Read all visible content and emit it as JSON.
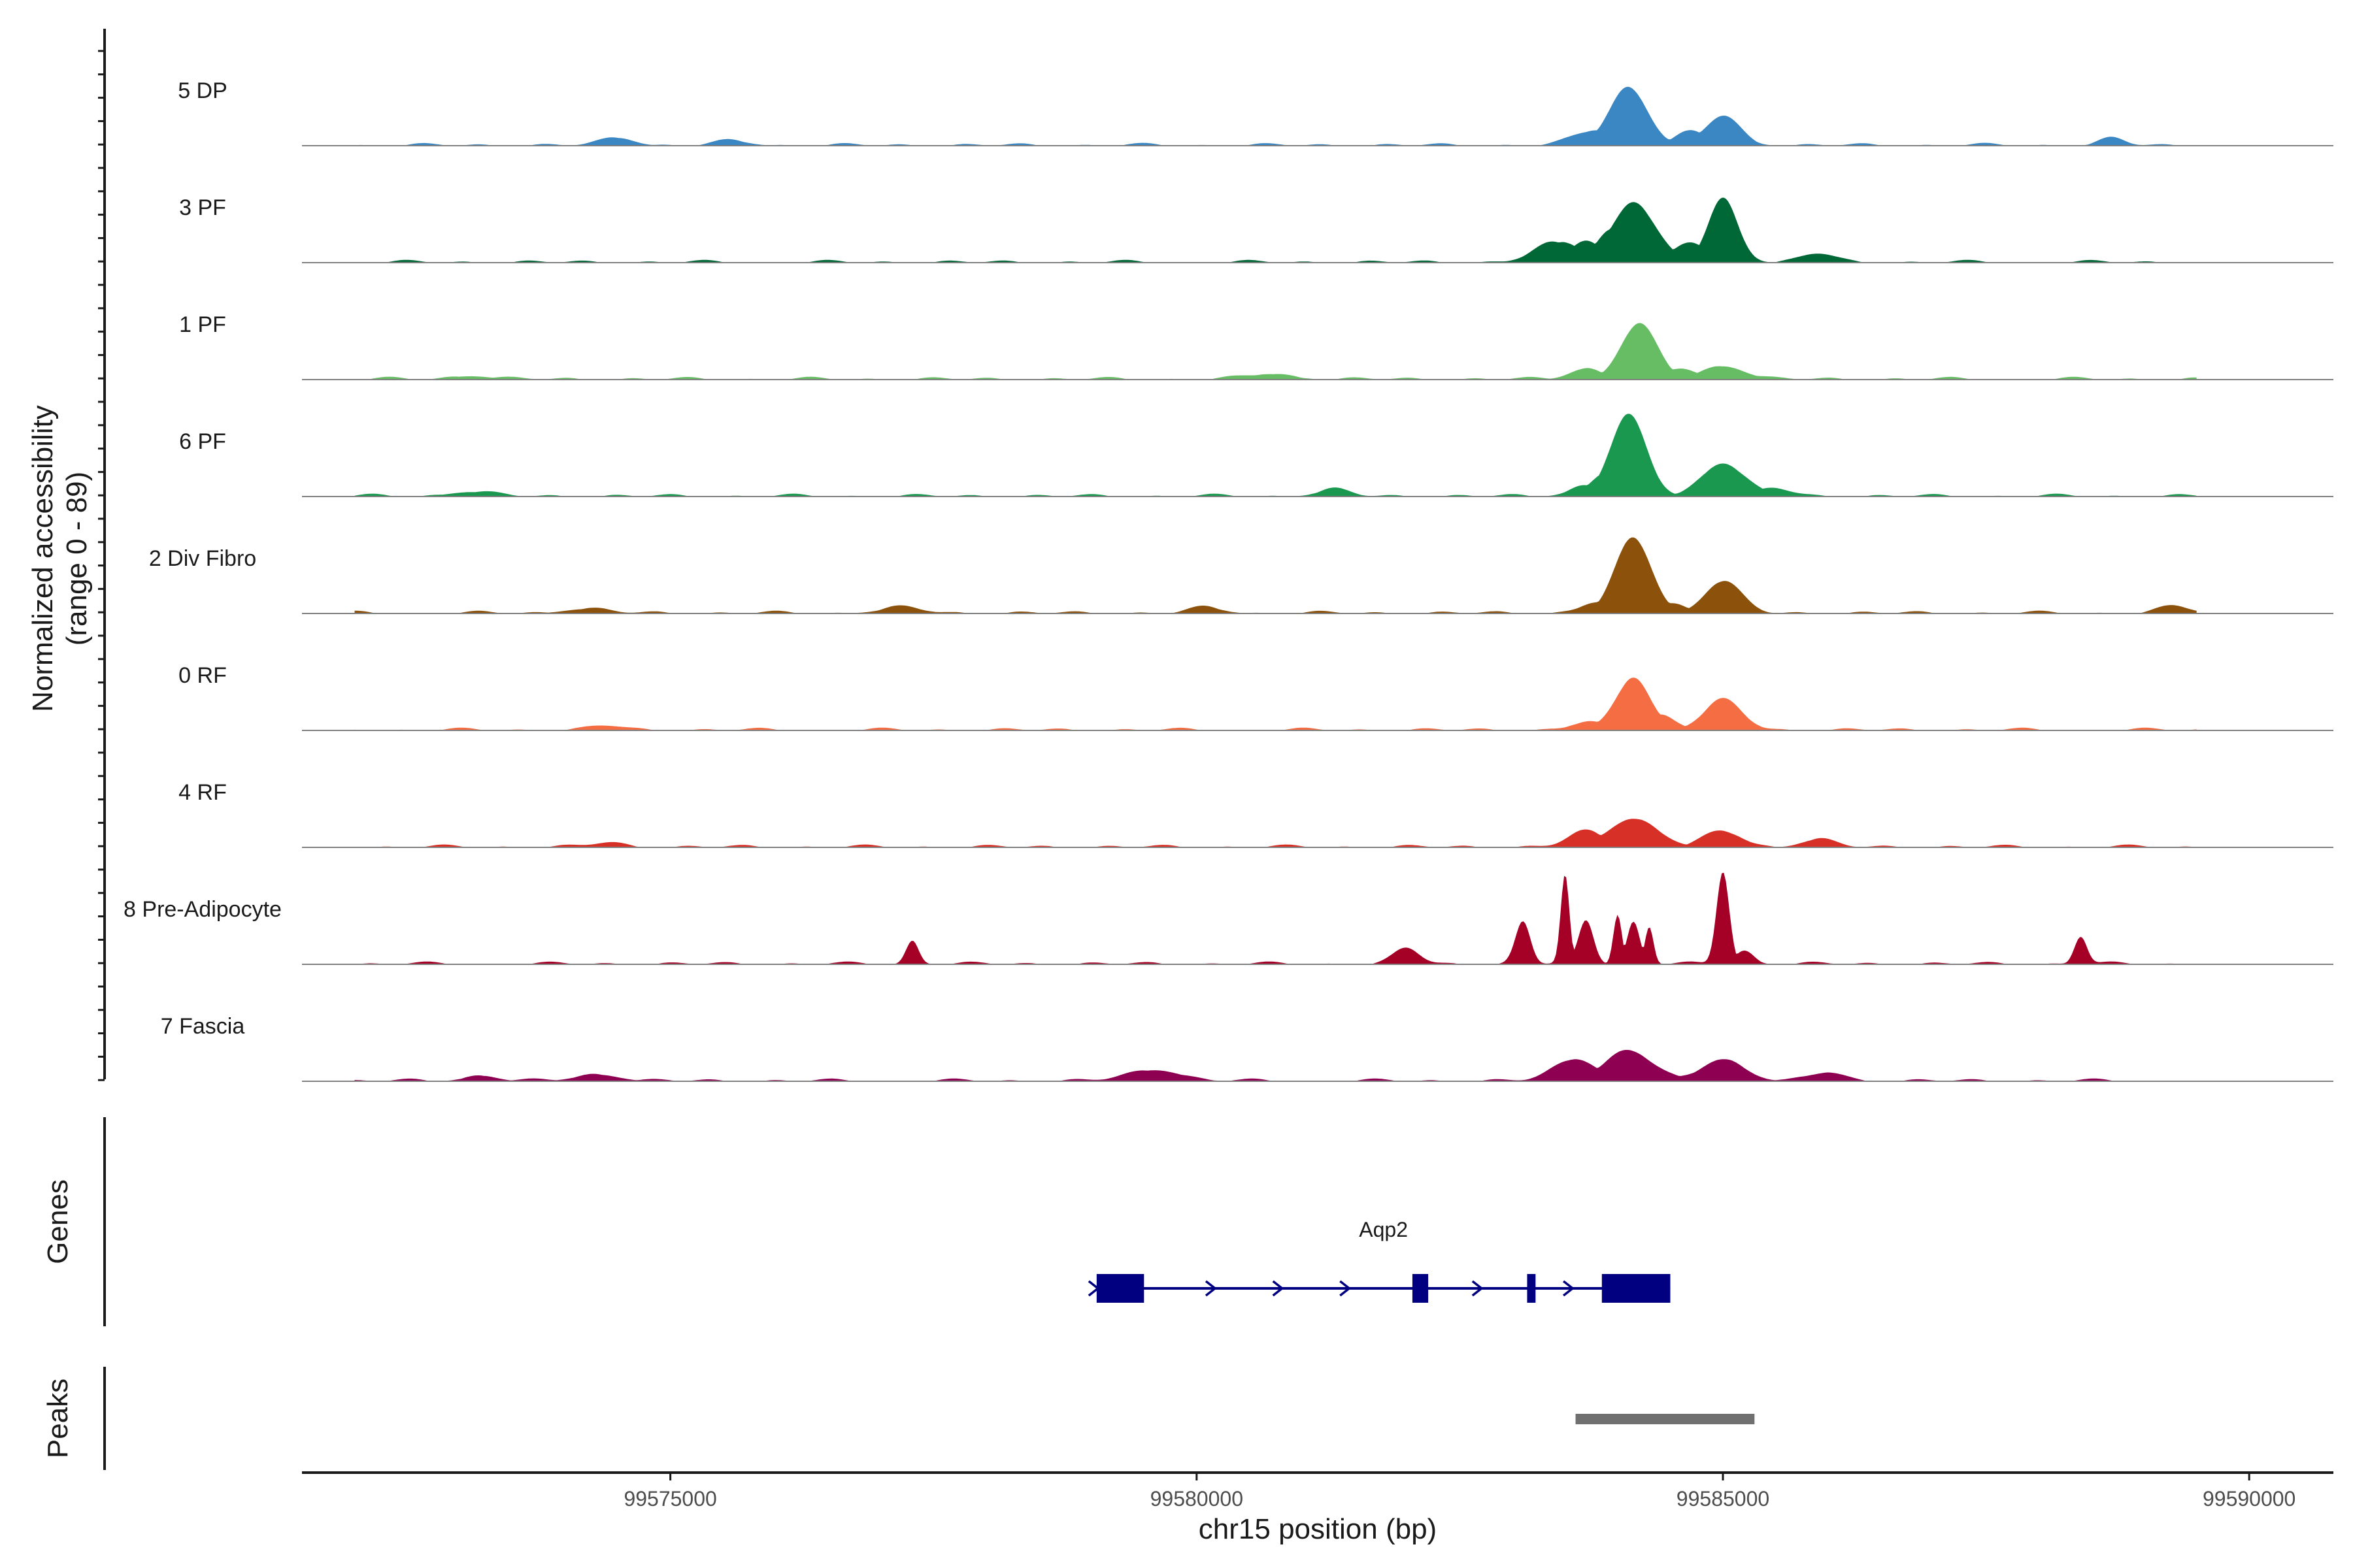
{
  "chart_data": {
    "type": "area",
    "title": "",
    "ylabel_line1": "Normalized accessibility",
    "ylabel_line2": "(range 0 - 89)",
    "xlabel": "chr15 position (bp)",
    "xlim": [
      99571500,
      99590800
    ],
    "ylim": [
      0,
      89
    ],
    "x_ticks": [
      99575000,
      99580000,
      99585000,
      99590000
    ],
    "x_tick_labels": [
      "99575000",
      "99580000",
      "99585000",
      "99590000"
    ],
    "track_range_bp": [
      99572000,
      99589500
    ],
    "series": [
      {
        "name": "5 DP",
        "color": "#3A87C4",
        "peaks": [
          [
            99574500,
            7,
            150
          ],
          [
            99575600,
            4,
            150
          ],
          [
            99584100,
            53,
            180
          ],
          [
            99583800,
            14,
            200
          ],
          [
            99585000,
            27,
            160
          ],
          [
            99584700,
            12,
            150
          ],
          [
            99588700,
            6,
            120
          ]
        ]
      },
      {
        "name": "3 PF",
        "color": "#006837",
        "peaks": [
          [
            99583400,
            17,
            200
          ],
          [
            99583500,
            18,
            150
          ],
          [
            99583700,
            20,
            150
          ],
          [
            99584150,
            55,
            200
          ],
          [
            99583950,
            30,
            150
          ],
          [
            99585000,
            58,
            140
          ],
          [
            99584700,
            18,
            150
          ],
          [
            99585900,
            8,
            150
          ]
        ]
      },
      {
        "name": "1 PF",
        "color": "#66BD63",
        "peaks": [
          [
            99573100,
            3,
            200
          ],
          [
            99580700,
            5,
            200
          ],
          [
            99583700,
            10,
            150
          ],
          [
            99584200,
            50,
            170
          ],
          [
            99584600,
            10,
            150
          ],
          [
            99585000,
            12,
            200
          ]
        ]
      },
      {
        "name": "6 PF",
        "color": "#1A9850",
        "peaks": [
          [
            99573100,
            4,
            200
          ],
          [
            99581300,
            6,
            150
          ],
          [
            99583700,
            10,
            150
          ],
          [
            99584100,
            73,
            170
          ],
          [
            99583900,
            22,
            150
          ],
          [
            99585000,
            30,
            200
          ],
          [
            99585500,
            7,
            150
          ]
        ]
      },
      {
        "name": "2 Div Fibro",
        "color": "#8C510A",
        "peaks": [
          [
            99574200,
            4,
            200
          ],
          [
            99577200,
            5,
            200
          ],
          [
            99580100,
            5,
            150
          ],
          [
            99584150,
            68,
            170
          ],
          [
            99583800,
            10,
            150
          ],
          [
            99584500,
            9,
            150
          ],
          [
            99585000,
            29,
            170
          ],
          [
            99589300,
            6,
            150
          ]
        ]
      },
      {
        "name": "0 RF",
        "color": "#F46D43",
        "peaks": [
          [
            99574400,
            4,
            150
          ],
          [
            99583700,
            7,
            150
          ],
          [
            99584150,
            48,
            160
          ],
          [
            99584400,
            14,
            150
          ],
          [
            99585000,
            27,
            180
          ]
        ]
      },
      {
        "name": "4 RF",
        "color": "#D73027",
        "peaks": [
          [
            99574400,
            4,
            150
          ],
          [
            99583700,
            14,
            170
          ],
          [
            99584150,
            26,
            230
          ],
          [
            99585000,
            14,
            180
          ],
          [
            99585900,
            7,
            150
          ]
        ]
      },
      {
        "name": "8 Pre-Adipocyte",
        "color": "#A50026",
        "peaks": [
          [
            99577300,
            21,
            60
          ],
          [
            99582000,
            14,
            120
          ],
          [
            99583100,
            38,
            70
          ],
          [
            99583500,
            80,
            40
          ],
          [
            99583700,
            40,
            70
          ],
          [
            99584000,
            45,
            40
          ],
          [
            99584150,
            38,
            60
          ],
          [
            99584300,
            34,
            40
          ],
          [
            99585000,
            84,
            60
          ],
          [
            99585200,
            12,
            90
          ],
          [
            99588400,
            25,
            60
          ]
        ]
      },
      {
        "name": "7 Fascia",
        "color": "#8E0152",
        "peaks": [
          [
            99573200,
            5,
            150
          ],
          [
            99574300,
            6,
            200
          ],
          [
            99579600,
            10,
            250
          ],
          [
            99583600,
            20,
            200
          ],
          [
            99584100,
            28,
            220
          ],
          [
            99585000,
            20,
            200
          ],
          [
            99586000,
            8,
            150
          ]
        ]
      }
    ],
    "genes_track_label": "Genes",
    "genes": [
      {
        "name": "Aqp2",
        "strand": "+",
        "start": 99579050,
        "end": 99584500,
        "exons": [
          [
            99579050,
            99579500
          ],
          [
            99582050,
            99582200
          ],
          [
            99583140,
            99583220
          ],
          [
            99583850,
            99584500
          ]
        ]
      }
    ],
    "peaks_track_label": "Peaks",
    "peak_regions": [
      [
        99583600,
        99585300
      ]
    ]
  }
}
